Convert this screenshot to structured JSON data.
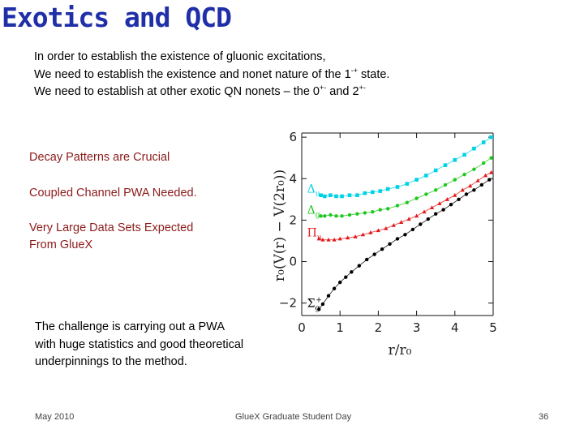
{
  "slide": {
    "title": "Exotics and QCD",
    "intro": {
      "line1": "In order to establish the existence of gluonic excitations,",
      "line2_pre": "We need to establish the existence and nonet nature of the 1",
      "line2_sup": "-+",
      "line2_post": " state.",
      "line3_pre": "We need to establish at other exotic QN nonets – the 0",
      "line3_sup1": "+-",
      "line3_mid": " and 2",
      "line3_sup2": "+-"
    },
    "notes": {
      "decay": "Decay Patterns are Crucial",
      "pwa": "Coupled Channel PWA Needed.",
      "data1": "Very Large Data Sets Expected",
      "data2": "From GlueX"
    },
    "challenge": {
      "line1": "The challenge is carrying out a PWA",
      "line2": "with huge statistics and good theoretical",
      "line3": "underpinnings to the method."
    },
    "footer": {
      "date": "May 2010",
      "event": "GlueX Graduate Student Day",
      "page": "36"
    }
  },
  "chart_data": {
    "type": "scatter",
    "xlabel": "r/r₀",
    "ylabel": "r₀(V(r) − V(2r₀))",
    "xlim": [
      0,
      5
    ],
    "ylim": [
      -2.6,
      6.2
    ],
    "xticks": [
      0,
      1,
      2,
      3,
      4,
      5
    ],
    "yticks": [
      -2,
      0,
      2,
      4,
      6
    ],
    "xtick_labels": [
      "0",
      "1",
      "2",
      "3",
      "4",
      "5"
    ],
    "ytick_labels": [
      "−2",
      "0",
      "2",
      "4",
      "6"
    ],
    "grid": false,
    "series": [
      {
        "name": "Σg+",
        "label_main": "Σ",
        "label_sub": "g",
        "label_sup": "+",
        "color": "#000000",
        "x": [
          0.45,
          0.55,
          0.7,
          0.85,
          1.0,
          1.15,
          1.3,
          1.5,
          1.7,
          1.9,
          2.1,
          2.3,
          2.5,
          2.7,
          2.9,
          3.1,
          3.3,
          3.5,
          3.7,
          3.9,
          4.1,
          4.3,
          4.5,
          4.7,
          4.9
        ],
        "y": [
          -2.3,
          -2.05,
          -1.65,
          -1.3,
          -1.0,
          -0.75,
          -0.5,
          -0.2,
          0.1,
          0.35,
          0.6,
          0.85,
          1.1,
          1.3,
          1.55,
          1.8,
          2.05,
          2.3,
          2.5,
          2.75,
          3.0,
          3.25,
          3.45,
          3.7,
          3.95
        ]
      },
      {
        "name": "Πu",
        "label_main": "Π",
        "label_sub": "u",
        "label_sup": "",
        "color": "#e41a1c",
        "x": [
          0.45,
          0.55,
          0.7,
          0.85,
          1.0,
          1.2,
          1.4,
          1.6,
          1.8,
          2.0,
          2.2,
          2.4,
          2.6,
          2.8,
          3.0,
          3.2,
          3.4,
          3.6,
          3.8,
          4.0,
          4.2,
          4.4,
          4.6,
          4.8,
          4.95
        ],
        "y": [
          1.1,
          1.05,
          1.05,
          1.05,
          1.1,
          1.15,
          1.2,
          1.3,
          1.4,
          1.5,
          1.6,
          1.75,
          1.9,
          2.05,
          2.2,
          2.4,
          2.6,
          2.8,
          3.0,
          3.2,
          3.45,
          3.65,
          3.9,
          4.15,
          4.3
        ]
      },
      {
        "name": "Δg",
        "label_main": "Δ",
        "label_sub": "g",
        "label_sup": "",
        "color": "#1ec81e",
        "x": [
          0.5,
          0.6,
          0.75,
          0.9,
          1.05,
          1.25,
          1.45,
          1.65,
          1.85,
          2.05,
          2.25,
          2.5,
          2.75,
          3.0,
          3.25,
          3.5,
          3.75,
          4.0,
          4.25,
          4.5,
          4.75,
          4.95
        ],
        "y": [
          2.2,
          2.2,
          2.25,
          2.2,
          2.2,
          2.25,
          2.3,
          2.35,
          2.4,
          2.5,
          2.55,
          2.7,
          2.85,
          3.05,
          3.25,
          3.45,
          3.7,
          3.95,
          4.2,
          4.45,
          4.75,
          5.0
        ]
      },
      {
        "name": "Δu",
        "label_main": "Δ",
        "label_sub": "u",
        "label_sup": "",
        "color": "#00d2e6",
        "x": [
          0.5,
          0.6,
          0.75,
          0.9,
          1.05,
          1.25,
          1.45,
          1.65,
          1.85,
          2.05,
          2.25,
          2.5,
          2.75,
          3.0,
          3.25,
          3.5,
          3.75,
          4.0,
          4.25,
          4.5,
          4.75,
          4.95
        ],
        "y": [
          3.2,
          3.15,
          3.2,
          3.15,
          3.15,
          3.2,
          3.2,
          3.3,
          3.35,
          3.4,
          3.5,
          3.6,
          3.75,
          3.95,
          4.15,
          4.4,
          4.65,
          4.9,
          5.15,
          5.45,
          5.75,
          6.0
        ]
      }
    ]
  }
}
